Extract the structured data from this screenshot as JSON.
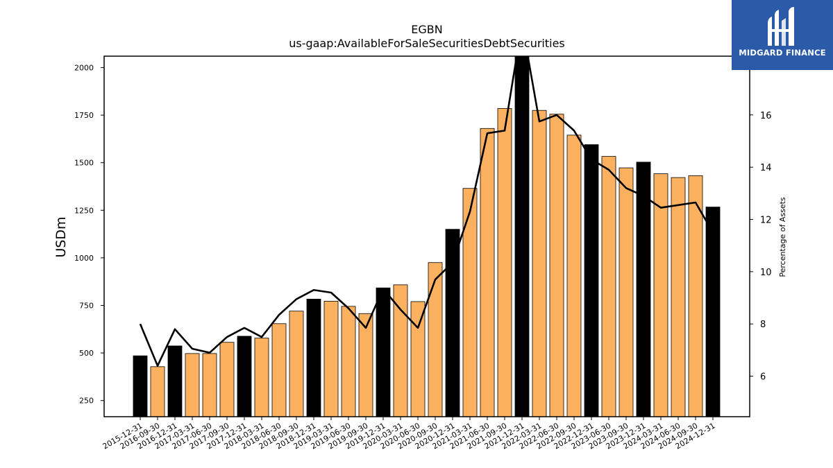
{
  "chart_data": {
    "type": "bar",
    "title": "EGBN",
    "subtitle": "us-gaap:AvailableForSaleSecuritiesDebtSecurities",
    "ylabel": "USDm",
    "y2label": "Percentage of Assets",
    "categories": [
      "2015-12-31",
      "2016-09-30",
      "2016-12-31",
      "2017-03-31",
      "2017-06-30",
      "2017-09-30",
      "2017-12-31",
      "2018-03-31",
      "2018-06-30",
      "2018-09-30",
      "2018-12-31",
      "2019-03-31",
      "2019-06-30",
      "2019-09-30",
      "2019-12-31",
      "2020-03-31",
      "2020-06-30",
      "2020-09-30",
      "2020-12-31",
      "2021-03-31",
      "2021-06-30",
      "2021-09-30",
      "2021-12-31",
      "2022-03-31",
      "2022-06-30",
      "2022-09-30",
      "2022-12-31",
      "2023-06-30",
      "2023-09-30",
      "2023-12-31",
      "2024-03-31",
      "2024-06-30",
      "2024-09-30",
      "2024-12-31"
    ],
    "series": [
      {
        "type": "bar",
        "axis": "left",
        "values": [
          485,
          428,
          537,
          497,
          497,
          556,
          588,
          578,
          654,
          720,
          783,
          772,
          745,
          707,
          842,
          858,
          770,
          975,
          1150,
          1365,
          1680,
          1785,
          2080,
          1775,
          1755,
          1645,
          1595,
          1533,
          1473,
          1503,
          1442,
          1422,
          1432,
          1267
        ],
        "annual_flags": [
          true,
          false,
          true,
          false,
          false,
          false,
          true,
          false,
          false,
          false,
          true,
          false,
          false,
          false,
          true,
          false,
          false,
          false,
          true,
          false,
          false,
          false,
          true,
          false,
          false,
          false,
          true,
          false,
          false,
          true,
          false,
          false,
          false,
          true
        ]
      },
      {
        "type": "line",
        "axis": "right",
        "values": [
          8.0,
          6.4,
          7.8,
          7.05,
          6.9,
          7.5,
          7.85,
          7.5,
          8.35,
          8.95,
          9.3,
          9.2,
          8.6,
          7.85,
          9.35,
          8.55,
          7.85,
          9.7,
          10.35,
          12.3,
          15.3,
          15.4,
          19.5,
          15.75,
          16.0,
          15.4,
          14.3,
          13.9,
          13.2,
          12.9,
          12.45,
          12.55,
          12.65,
          11.5
        ]
      }
    ],
    "ylim": [
      165,
      2060
    ],
    "y_ticks": [
      "250",
      "500",
      "750",
      "1000",
      "1250",
      "1500",
      "1750",
      "2000"
    ],
    "y2lim": [
      4.45,
      18.25
    ],
    "y2_ticks": [
      "6",
      "8",
      "10",
      "12",
      "14",
      "16"
    ],
    "colors": {
      "annual_bar": "#000000",
      "quarter_bar": "#fbb160",
      "line": "#000000"
    },
    "grid": false,
    "legend": "none"
  },
  "logo": {
    "text": "MIDGARD FINANCE",
    "background": "#2a5aa8"
  }
}
